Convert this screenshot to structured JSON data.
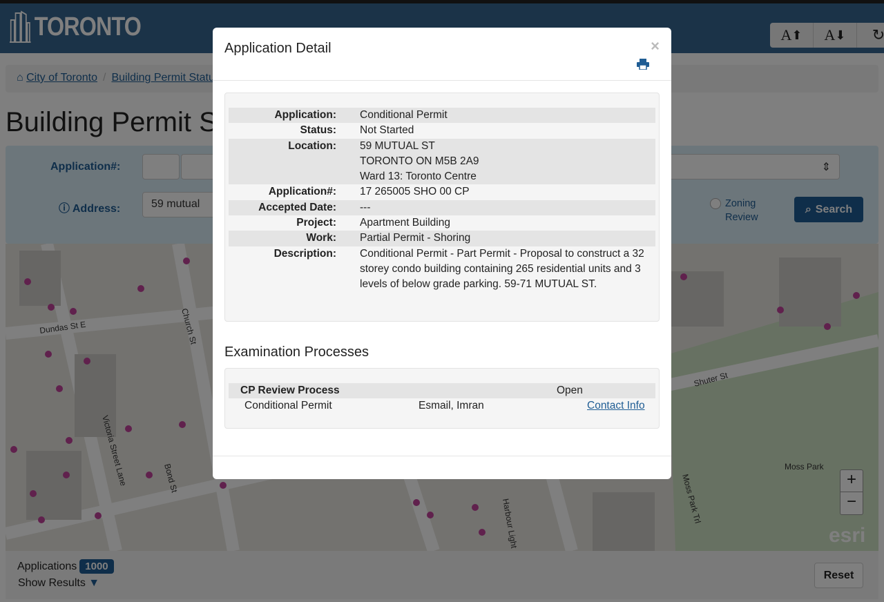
{
  "header": {
    "logo_text": "TORONTO",
    "font_buttons": [
      "A",
      "A"
    ]
  },
  "breadcrumb": [
    "City of Toronto",
    "Building Permit Status"
  ],
  "page_title": "Building Permit Status",
  "search": {
    "application_label": "Application#:",
    "address_label": "Address:",
    "address_value": "59 mutual",
    "zoning_label": "Zoning Review",
    "search_label": "Search"
  },
  "map": {
    "labels": [
      "Dundas St E",
      "Victoria Street Lane",
      "Bond St",
      "Church St",
      "Shuter St",
      "Moss Park",
      "Moss Park Trl",
      "Harbour Light"
    ],
    "esri": "esri"
  },
  "bottom": {
    "applications_label": "Applications",
    "count": "1000",
    "show_results": "Show Results",
    "reset": "Reset"
  },
  "modal": {
    "title": "Application Detail",
    "close": "×",
    "details": [
      {
        "label": "Application:",
        "value": "Conditional Permit"
      },
      {
        "label": "Status:",
        "value": "Not Started"
      },
      {
        "label": "Location:",
        "value": [
          "59 MUTUAL ST",
          "TORONTO ON M5B 2A9",
          "Ward 13: Toronto Centre"
        ]
      },
      {
        "label": "Application#:",
        "value": "17 265005 SHO 00 CP"
      },
      {
        "label": "Accepted Date:",
        "value": "---"
      },
      {
        "label": "Project:",
        "value": "Apartment Building"
      },
      {
        "label": "Work:",
        "value": "Partial Permit - Shoring"
      },
      {
        "label": "Description:",
        "value": "Conditional Permit - Part Permit - Proposal to construct a 32 storey condo building containing 265 residential units and 3 levels of below grade parking. 59-71 MUTUAL ST."
      }
    ],
    "exam_title": "Examination Processes",
    "process": {
      "name": "CP Review Process",
      "status": "Open",
      "type": "Conditional Permit",
      "examiner": "Esmail, Imran",
      "contact": "Contact Info"
    }
  },
  "colors": {
    "brand": "#376690",
    "accent": "#1f5d94",
    "poi": "#c0439b"
  }
}
